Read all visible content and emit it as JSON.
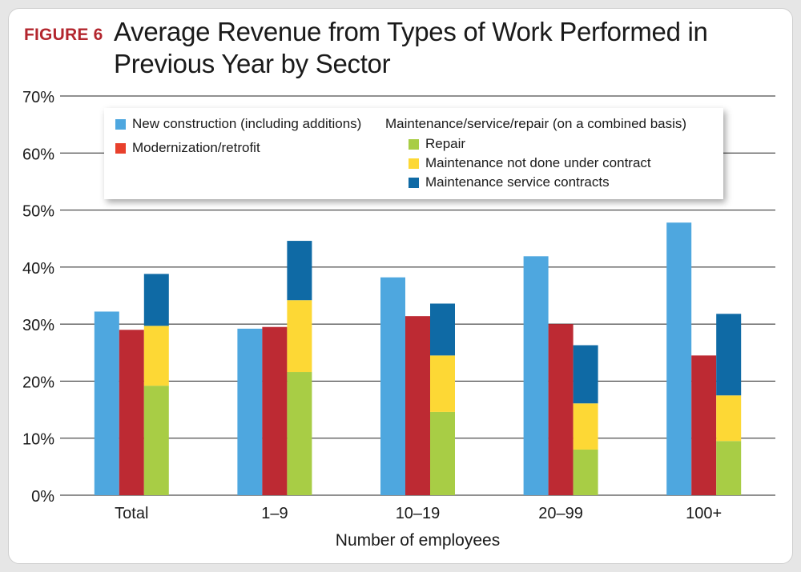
{
  "figure_label": "FIGURE 6",
  "colors": {
    "new_construction": "#4ea7df",
    "modernization": "#bd2a33",
    "modernization_legend": "#e8402c",
    "repair": "#a8cd45",
    "maintenance_not_contract": "#fdd835",
    "maintenance_service": "#0f6aa5",
    "grid": "#222222"
  },
  "legend": {
    "new_construction": "New construction (including additions)",
    "modernization": "Modernization/retrofit",
    "group_title": "Maintenance/service/repair (on a combined basis)",
    "repair": "Repair",
    "maintenance_not_contract": "Maintenance not done under contract",
    "maintenance_service": "Maintenance service contracts"
  },
  "chart_data": {
    "type": "bar",
    "title": "Average Revenue from Types of Work Performed in Previous Year by Sector",
    "xlabel": "Number of employees",
    "ylabel": "",
    "ylim": [
      0,
      70
    ],
    "yticks": [
      "0%",
      "10%",
      "20%",
      "30%",
      "40%",
      "50%",
      "60%",
      "70%"
    ],
    "categories": [
      "Total",
      "1–9",
      "10–19",
      "20–99",
      "100+"
    ],
    "grid": true,
    "legend_position": "top",
    "series": [
      {
        "name": "New construction (including additions)",
        "values": [
          32.2,
          29.2,
          38.2,
          41.9,
          47.8
        ]
      },
      {
        "name": "Modernization/retrofit",
        "values": [
          29.0,
          29.5,
          31.4,
          30.0,
          24.5
        ]
      },
      {
        "name": "Repair",
        "values": [
          19.2,
          21.6,
          14.6,
          8.0,
          9.5
        ]
      },
      {
        "name": "Maintenance not done under contract",
        "values": [
          10.5,
          12.6,
          9.9,
          8.1,
          8.0
        ]
      },
      {
        "name": "Maintenance service contracts",
        "values": [
          9.1,
          10.4,
          9.1,
          10.2,
          14.3
        ]
      }
    ]
  }
}
